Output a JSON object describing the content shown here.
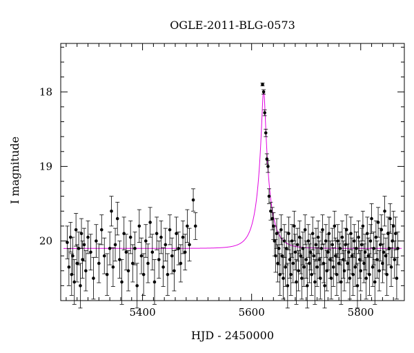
{
  "chart_data": {
    "type": "scatter",
    "title": "OGLE-2011-BLG-0573",
    "xlabel": "HJD - 2450000",
    "ylabel": "I magnitude",
    "xlim": [
      5250,
      5880
    ],
    "ylim": [
      20.8,
      17.35
    ],
    "y_inverted": true,
    "x_ticks": [
      5400,
      5600,
      5800
    ],
    "y_ticks": [
      18,
      19,
      20
    ],
    "x_minor_step": 20,
    "y_minor_step": 0.2,
    "grid": false,
    "colors": {
      "points": "#000000",
      "model": "#e000e0",
      "axes": "#000000"
    },
    "model": {
      "label": "",
      "baseline_mag": 20.1,
      "peak_mag": 17.98,
      "t0": 5622,
      "u0": 0.14,
      "tE": 22
    },
    "series": [
      {
        "name": "",
        "points": [
          [
            5262,
            20.02,
            0.22
          ],
          [
            5265,
            20.35,
            0.25
          ],
          [
            5268,
            19.95,
            0.2
          ],
          [
            5270,
            20.45,
            0.28
          ],
          [
            5272,
            20.2,
            0.25
          ],
          [
            5275,
            20.55,
            0.3
          ],
          [
            5278,
            19.85,
            0.22
          ],
          [
            5280,
            20.3,
            0.25
          ],
          [
            5283,
            20.1,
            0.22
          ],
          [
            5286,
            20.6,
            0.3
          ],
          [
            5288,
            19.9,
            0.2
          ],
          [
            5290,
            20.25,
            0.25
          ],
          [
            5293,
            20.05,
            0.22
          ],
          [
            5296,
            20.4,
            0.27
          ],
          [
            5300,
            19.95,
            0.22
          ],
          [
            5305,
            20.15,
            0.24
          ],
          [
            5310,
            20.5,
            0.28
          ],
          [
            5315,
            20.0,
            0.22
          ],
          [
            5320,
            20.3,
            0.26
          ],
          [
            5325,
            19.85,
            0.2
          ],
          [
            5330,
            20.2,
            0.24
          ],
          [
            5335,
            20.45,
            0.28
          ],
          [
            5340,
            20.1,
            0.22
          ],
          [
            5343,
            19.6,
            0.2
          ],
          [
            5346,
            20.35,
            0.26
          ],
          [
            5350,
            20.05,
            0.22
          ],
          [
            5354,
            19.7,
            0.22
          ],
          [
            5358,
            20.25,
            0.25
          ],
          [
            5362,
            20.55,
            0.3
          ],
          [
            5366,
            19.9,
            0.22
          ],
          [
            5370,
            20.15,
            0.24
          ],
          [
            5374,
            20.4,
            0.27
          ],
          [
            5378,
            19.95,
            0.22
          ],
          [
            5382,
            20.3,
            0.25
          ],
          [
            5386,
            20.1,
            0.22
          ],
          [
            5390,
            20.6,
            0.3
          ],
          [
            5394,
            19.8,
            0.22
          ],
          [
            5398,
            20.2,
            0.24
          ],
          [
            5402,
            20.45,
            0.28
          ],
          [
            5406,
            20.0,
            0.22
          ],
          [
            5410,
            20.3,
            0.26
          ],
          [
            5414,
            19.75,
            0.2
          ],
          [
            5418,
            20.15,
            0.24
          ],
          [
            5422,
            20.55,
            0.3
          ],
          [
            5426,
            19.9,
            0.22
          ],
          [
            5430,
            20.25,
            0.25
          ],
          [
            5434,
            19.95,
            0.22
          ],
          [
            5438,
            20.35,
            0.26
          ],
          [
            5442,
            20.05,
            0.22
          ],
          [
            5446,
            20.45,
            0.28
          ],
          [
            5450,
            19.85,
            0.2
          ],
          [
            5454,
            20.2,
            0.24
          ],
          [
            5458,
            20.4,
            0.27
          ],
          [
            5462,
            19.9,
            0.22
          ],
          [
            5466,
            20.1,
            0.22
          ],
          [
            5470,
            20.3,
            0.25
          ],
          [
            5474,
            19.95,
            0.22
          ],
          [
            5478,
            20.15,
            0.24
          ],
          [
            5482,
            19.8,
            0.22
          ],
          [
            5486,
            20.05,
            0.22
          ],
          [
            5493,
            19.45,
            0.15
          ],
          [
            5497,
            19.8,
            0.18
          ],
          [
            5620,
            17.9,
            0.02
          ],
          [
            5622,
            18.0,
            0.03
          ],
          [
            5624,
            18.28,
            0.04
          ],
          [
            5626,
            18.55,
            0.05
          ],
          [
            5628,
            18.9,
            0.07
          ],
          [
            5630,
            19.0,
            0.08
          ],
          [
            5632,
            19.4,
            0.1
          ],
          [
            5635,
            19.6,
            0.12
          ],
          [
            5638,
            19.7,
            0.15
          ],
          [
            5640,
            19.8,
            0.18
          ],
          [
            5642,
            20.0,
            0.2
          ],
          [
            5644,
            20.2,
            0.22
          ],
          [
            5646,
            19.9,
            0.2
          ],
          [
            5648,
            20.3,
            0.25
          ],
          [
            5650,
            20.1,
            0.22
          ],
          [
            5652,
            20.45,
            0.28
          ],
          [
            5654,
            19.85,
            0.2
          ],
          [
            5656,
            20.2,
            0.24
          ],
          [
            5658,
            20.5,
            0.28
          ],
          [
            5660,
            20.0,
            0.22
          ],
          [
            5662,
            20.35,
            0.26
          ],
          [
            5664,
            20.1,
            0.22
          ],
          [
            5666,
            20.6,
            0.3
          ],
          [
            5668,
            19.9,
            0.22
          ],
          [
            5670,
            20.25,
            0.25
          ],
          [
            5672,
            20.45,
            0.28
          ],
          [
            5674,
            20.0,
            0.22
          ],
          [
            5676,
            20.3,
            0.26
          ],
          [
            5678,
            19.8,
            0.2
          ],
          [
            5680,
            20.15,
            0.24
          ],
          [
            5682,
            20.55,
            0.3
          ],
          [
            5684,
            20.05,
            0.22
          ],
          [
            5686,
            20.4,
            0.27
          ],
          [
            5688,
            19.95,
            0.22
          ],
          [
            5690,
            20.2,
            0.24
          ],
          [
            5692,
            20.5,
            0.28
          ],
          [
            5694,
            20.1,
            0.22
          ],
          [
            5696,
            20.35,
            0.26
          ],
          [
            5698,
            19.85,
            0.2
          ],
          [
            5700,
            20.25,
            0.25
          ],
          [
            5702,
            20.6,
            0.3
          ],
          [
            5704,
            20.0,
            0.22
          ],
          [
            5706,
            20.3,
            0.26
          ],
          [
            5708,
            20.15,
            0.24
          ],
          [
            5710,
            20.45,
            0.28
          ],
          [
            5712,
            19.9,
            0.22
          ],
          [
            5714,
            20.2,
            0.24
          ],
          [
            5716,
            20.55,
            0.3
          ],
          [
            5718,
            20.05,
            0.22
          ],
          [
            5720,
            20.35,
            0.26
          ],
          [
            5722,
            19.95,
            0.22
          ],
          [
            5724,
            20.25,
            0.25
          ],
          [
            5726,
            20.5,
            0.28
          ],
          [
            5728,
            20.1,
            0.22
          ],
          [
            5730,
            19.85,
            0.2
          ],
          [
            5732,
            20.3,
            0.26
          ],
          [
            5734,
            20.6,
            0.3
          ],
          [
            5736,
            20.0,
            0.22
          ],
          [
            5738,
            20.4,
            0.27
          ],
          [
            5740,
            20.15,
            0.24
          ],
          [
            5742,
            19.9,
            0.22
          ],
          [
            5744,
            20.25,
            0.25
          ],
          [
            5746,
            20.5,
            0.28
          ],
          [
            5748,
            20.05,
            0.22
          ],
          [
            5750,
            20.35,
            0.26
          ],
          [
            5752,
            19.8,
            0.2
          ],
          [
            5754,
            20.2,
            0.24
          ],
          [
            5756,
            20.45,
            0.28
          ],
          [
            5758,
            20.0,
            0.22
          ],
          [
            5760,
            20.3,
            0.26
          ],
          [
            5762,
            20.1,
            0.22
          ],
          [
            5764,
            20.55,
            0.3
          ],
          [
            5766,
            19.95,
            0.22
          ],
          [
            5768,
            20.25,
            0.25
          ],
          [
            5770,
            20.4,
            0.27
          ],
          [
            5772,
            20.05,
            0.22
          ],
          [
            5774,
            19.85,
            0.2
          ],
          [
            5776,
            20.3,
            0.26
          ],
          [
            5778,
            20.15,
            0.24
          ],
          [
            5780,
            20.5,
            0.28
          ],
          [
            5782,
            19.9,
            0.22
          ],
          [
            5784,
            20.2,
            0.24
          ],
          [
            5786,
            20.45,
            0.28
          ],
          [
            5788,
            20.0,
            0.22
          ],
          [
            5790,
            20.35,
            0.26
          ],
          [
            5792,
            20.1,
            0.22
          ],
          [
            5794,
            20.6,
            0.3
          ],
          [
            5796,
            19.95,
            0.22
          ],
          [
            5798,
            20.25,
            0.25
          ],
          [
            5800,
            20.4,
            0.27
          ],
          [
            5802,
            20.05,
            0.22
          ],
          [
            5804,
            19.8,
            0.2
          ],
          [
            5806,
            20.3,
            0.26
          ],
          [
            5808,
            20.15,
            0.24
          ],
          [
            5810,
            20.5,
            0.28
          ],
          [
            5812,
            19.9,
            0.22
          ],
          [
            5814,
            20.2,
            0.24
          ],
          [
            5816,
            20.45,
            0.28
          ],
          [
            5818,
            20.0,
            0.22
          ],
          [
            5820,
            19.7,
            0.2
          ],
          [
            5822,
            20.35,
            0.26
          ],
          [
            5824,
            20.1,
            0.22
          ],
          [
            5826,
            20.55,
            0.3
          ],
          [
            5828,
            19.95,
            0.22
          ],
          [
            5830,
            20.25,
            0.25
          ],
          [
            5832,
            19.75,
            0.2
          ],
          [
            5834,
            20.4,
            0.27
          ],
          [
            5836,
            20.05,
            0.22
          ],
          [
            5838,
            19.85,
            0.2
          ],
          [
            5840,
            20.3,
            0.26
          ],
          [
            5842,
            20.15,
            0.24
          ],
          [
            5844,
            19.6,
            0.2
          ],
          [
            5846,
            20.2,
            0.24
          ],
          [
            5848,
            20.45,
            0.28
          ],
          [
            5850,
            19.9,
            0.22
          ],
          [
            5852,
            20.1,
            0.22
          ],
          [
            5854,
            19.7,
            0.2
          ],
          [
            5856,
            20.35,
            0.26
          ],
          [
            5858,
            20.0,
            0.22
          ],
          [
            5860,
            19.8,
            0.2
          ],
          [
            5862,
            20.25,
            0.25
          ],
          [
            5864,
            19.9,
            0.22
          ],
          [
            5866,
            20.5,
            0.28
          ],
          [
            5868,
            20.1,
            0.22
          ]
        ]
      }
    ]
  }
}
